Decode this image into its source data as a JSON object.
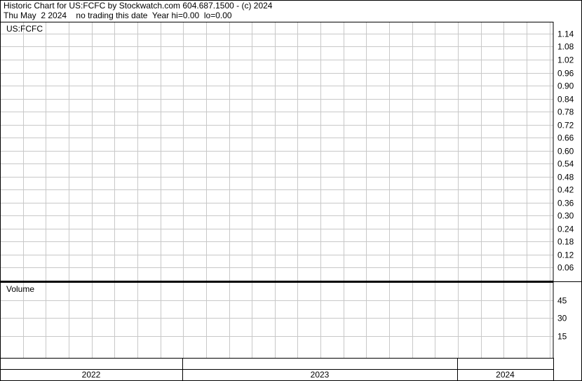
{
  "chart_data": [
    {
      "type": "line",
      "title": "Historic Chart for US:FCFC by Stockwatch.com 604.687.1500 - (c) 2024",
      "subtitle": "Thu May  2 2024    no trading this date  Year hi=0.00  lo=0.00",
      "label": "US:FCFC",
      "ylim": [
        0,
        1.2
      ],
      "yticks": [
        0.06,
        0.12,
        0.18,
        0.24,
        {
          "value": 0.3,
          "label": "0.30"
        },
        0.36,
        0.42,
        0.48,
        0.54,
        {
          "value": 0.6,
          "label": "0.60"
        },
        0.66,
        0.72,
        0.78,
        0.84,
        {
          "value": 0.9,
          "label": "0.90"
        },
        0.96,
        1.02,
        1.08,
        1.14
      ],
      "grid": true,
      "series": []
    },
    {
      "type": "bar",
      "label": "Volume",
      "ylim": [
        0,
        60
      ],
      "yticks": [
        15,
        30,
        45
      ],
      "grid": true,
      "series": [],
      "categories": [
        "2022",
        "2023",
        "2024"
      ]
    }
  ]
}
